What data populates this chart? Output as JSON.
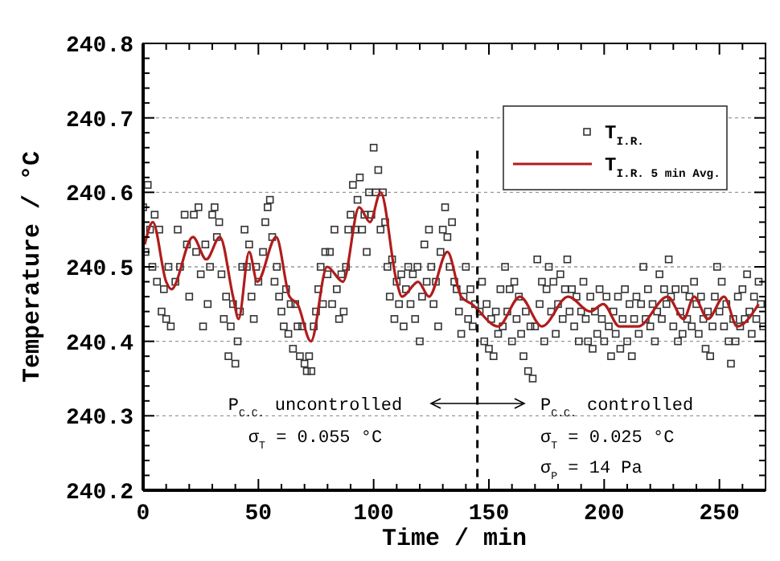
{
  "chart_data": {
    "type": "scatter",
    "xlabel": "Time / min",
    "ylabel": "Temperature / °C",
    "xlim": [
      0,
      270
    ],
    "ylim": [
      240.2,
      240.8
    ],
    "xticks": [
      0,
      {
        "value": 10,
        "label": null
      },
      {
        "value": 20,
        "label": null
      },
      {
        "value": 30,
        "label": null
      },
      {
        "value": 40,
        "label": null
      },
      50,
      {
        "value": 60,
        "label": null
      },
      {
        "value": 70,
        "label": null
      },
      {
        "value": 80,
        "label": null
      },
      {
        "value": 90,
        "label": null
      },
      100,
      {
        "value": 110,
        "label": null
      },
      {
        "value": 120,
        "label": null
      },
      {
        "value": 130,
        "label": null
      },
      {
        "value": 140,
        "label": null
      },
      150,
      {
        "value": 160,
        "label": null
      },
      {
        "value": 170,
        "label": null
      },
      {
        "value": 180,
        "label": null
      },
      {
        "value": 190,
        "label": null
      },
      200,
      {
        "value": 210,
        "label": null
      },
      {
        "value": 220,
        "label": null
      },
      {
        "value": 230,
        "label": null
      },
      {
        "value": 240,
        "label": null
      },
      250,
      {
        "value": 260,
        "label": null
      }
    ],
    "yticks": [
      240.2,
      {
        "value": 240.22,
        "label": null
      },
      {
        "value": 240.24,
        "label": null
      },
      {
        "value": 240.26,
        "label": null
      },
      {
        "value": 240.28,
        "label": null
      },
      240.3,
      {
        "value": 240.32,
        "label": null
      },
      {
        "value": 240.34,
        "label": null
      },
      {
        "value": 240.36,
        "label": null
      },
      {
        "value": 240.38,
        "label": null
      },
      240.4,
      {
        "value": 240.42,
        "label": null
      },
      {
        "value": 240.44,
        "label": null
      },
      {
        "value": 240.46,
        "label": null
      },
      {
        "value": 240.48,
        "label": null
      },
      240.5,
      {
        "value": 240.52,
        "label": null
      },
      {
        "value": 240.54,
        "label": null
      },
      {
        "value": 240.56,
        "label": null
      },
      {
        "value": 240.58,
        "label": null
      },
      240.6,
      {
        "value": 240.62,
        "label": null
      },
      {
        "value": 240.64,
        "label": null
      },
      {
        "value": 240.66,
        "label": null
      },
      {
        "value": 240.68,
        "label": null
      },
      240.7,
      {
        "value": 240.72,
        "label": null
      },
      {
        "value": 240.74,
        "label": null
      },
      {
        "value": 240.76,
        "label": null
      },
      {
        "value": 240.78,
        "label": null
      },
      240.8
    ],
    "grid": "y",
    "legend": "top right",
    "series": [
      {
        "name": "T$_{I.R.}$",
        "marker": "square",
        "color": "#333333",
        "x": [
          0,
          1,
          2,
          3,
          4,
          5,
          6,
          7,
          8,
          9,
          10,
          11,
          12,
          14,
          15,
          16,
          18,
          19,
          20,
          22,
          23,
          24,
          25,
          26,
          27,
          28,
          29,
          30,
          31,
          32,
          33,
          34,
          35,
          36,
          37,
          38,
          39,
          40,
          41,
          42,
          43,
          44,
          45,
          46,
          47,
          48,
          49,
          50,
          52,
          53,
          54,
          55,
          56,
          57,
          58,
          59,
          60,
          61,
          62,
          63,
          64,
          65,
          66,
          67,
          68,
          69,
          70,
          71,
          72,
          73,
          74,
          75,
          76,
          77,
          78,
          79,
          80,
          81,
          82,
          83,
          84,
          85,
          86,
          87,
          88,
          89,
          90,
          91,
          92,
          93,
          94,
          95,
          96,
          97,
          98,
          99,
          100,
          101,
          102,
          103,
          104,
          105,
          106,
          107,
          108,
          109,
          110,
          111,
          112,
          113,
          114,
          115,
          116,
          117,
          118,
          119,
          120,
          121,
          122,
          123,
          124,
          125,
          126,
          127,
          128,
          129,
          130,
          131,
          132,
          133,
          134,
          135,
          136,
          137,
          138,
          139,
          140,
          141,
          142,
          143,
          144,
          146,
          147,
          148,
          149,
          150,
          151,
          152,
          153,
          154,
          155,
          156,
          157,
          158,
          159,
          160,
          161,
          162,
          163,
          164,
          165,
          166,
          167,
          168,
          169,
          170,
          171,
          172,
          173,
          174,
          175,
          176,
          177,
          178,
          179,
          180,
          181,
          182,
          183,
          184,
          185,
          186,
          187,
          188,
          189,
          190,
          191,
          192,
          193,
          194,
          195,
          196,
          197,
          198,
          199,
          200,
          201,
          202,
          203,
          204,
          205,
          206,
          207,
          208,
          209,
          210,
          211,
          212,
          213,
          214,
          215,
          216,
          217,
          218,
          219,
          220,
          221,
          222,
          223,
          224,
          225,
          226,
          227,
          228,
          229,
          230,
          231,
          232,
          233,
          234,
          235,
          236,
          237,
          238,
          239,
          240,
          241,
          242,
          243,
          244,
          245,
          246,
          247,
          248,
          249,
          250,
          251,
          252,
          253,
          254,
          255,
          256,
          257,
          258,
          259,
          260,
          261,
          262,
          263,
          264,
          265,
          266,
          267,
          268,
          269
        ],
        "values": [
          240.58,
          240.52,
          240.61,
          240.55,
          240.5,
          240.57,
          240.48,
          240.55,
          240.44,
          240.47,
          240.43,
          240.5,
          240.42,
          240.48,
          240.55,
          240.5,
          240.57,
          240.53,
          240.46,
          240.57,
          240.52,
          240.58,
          240.49,
          240.42,
          240.53,
          240.45,
          240.5,
          240.57,
          240.58,
          240.54,
          240.56,
          240.49,
          240.43,
          240.46,
          240.38,
          240.42,
          240.45,
          240.37,
          240.4,
          240.44,
          240.5,
          240.55,
          240.5,
          240.53,
          240.46,
          240.43,
          240.5,
          240.48,
          240.52,
          240.56,
          240.58,
          240.59,
          240.54,
          240.48,
          240.5,
          240.46,
          240.44,
          240.42,
          240.47,
          240.41,
          240.45,
          240.39,
          240.45,
          240.42,
          240.38,
          240.42,
          240.37,
          240.36,
          240.38,
          240.36,
          240.42,
          240.44,
          240.47,
          240.5,
          240.45,
          240.52,
          240.49,
          240.52,
          240.45,
          240.55,
          240.47,
          240.43,
          240.49,
          240.44,
          240.5,
          240.55,
          240.57,
          240.61,
          240.55,
          240.59,
          240.62,
          240.55,
          240.57,
          240.52,
          240.6,
          240.57,
          240.66,
          240.6,
          240.63,
          240.55,
          240.6,
          240.56,
          240.5,
          240.46,
          240.51,
          240.43,
          240.48,
          240.45,
          240.49,
          240.42,
          240.47,
          240.5,
          240.45,
          240.49,
          240.43,
          240.5,
          240.4,
          240.46,
          240.53,
          240.48,
          240.55,
          240.5,
          240.45,
          240.48,
          240.42,
          240.52,
          240.55,
          240.58,
          240.54,
          240.5,
          240.56,
          240.48,
          240.47,
          240.44,
          240.41,
          240.46,
          240.5,
          240.43,
          240.47,
          240.42,
          240.45,
          240.44,
          240.48,
          240.4,
          240.45,
          240.39,
          240.43,
          240.38,
          240.44,
          240.41,
          240.47,
          240.42,
          240.5,
          240.44,
          240.47,
          240.4,
          240.48,
          240.43,
          240.46,
          240.41,
          240.38,
          240.44,
          240.36,
          240.42,
          240.35,
          240.42,
          240.51,
          240.45,
          240.48,
          240.4,
          240.47,
          240.5,
          240.44,
          240.48,
          240.41,
          240.45,
          240.49,
          240.43,
          240.47,
          240.51,
          240.44,
          240.47,
          240.42,
          240.46,
          240.4,
          240.44,
          240.48,
          240.43,
          240.4,
          240.46,
          240.39,
          240.44,
          240.41,
          240.47,
          240.43,
          240.4,
          240.46,
          240.42,
          240.38,
          240.44,
          240.41,
          240.46,
          240.39,
          240.43,
          240.47,
          240.4,
          240.45,
          240.38,
          240.43,
          240.46,
          240.41,
          240.45,
          240.5,
          240.43,
          240.47,
          240.42,
          240.45,
          240.4,
          240.44,
          240.49,
          240.43,
          240.47,
          240.45,
          240.51,
          240.46,
          240.42,
          240.47,
          240.4,
          240.44,
          240.41,
          240.47,
          240.43,
          240.46,
          240.42,
          240.48,
          240.45,
          240.41,
          240.46,
          240.43,
          240.39,
          240.44,
          240.38,
          240.42,
          240.46,
          240.5,
          240.44,
          240.48,
          240.42,
          240.45,
          240.4,
          240.37,
          240.43,
          240.4,
          240.46,
          240.42,
          240.47,
          240.43,
          240.49,
          240.44,
          240.41,
          240.46,
          240.43,
          240.48,
          240.45,
          240.42
        ]
      },
      {
        "name": "T$_{I.R. 5 min Avg.}$",
        "type": "line",
        "marker": "none",
        "line_style": "solid",
        "color": "#b01c1c",
        "x": [
          0.7,
          4.2,
          10,
          12.3,
          21.6,
          27.4,
          33.3,
          39,
          41.4,
          46,
          49.5,
          57.7,
          63.5,
          67,
          72.8,
          79.8,
          86.7,
          93.7,
          98.4,
          103,
          110,
          112.3,
          119.3,
          124,
          132,
          138,
          142.6,
          154,
          163.5,
          173,
          184.4,
          194,
          199.6,
          206.6,
          214.7,
          227.5,
          234.5,
          239,
          245,
          252,
          257.7,
          267
        ],
        "values": [
          240.53,
          240.56,
          240.48,
          240.47,
          240.54,
          240.51,
          240.54,
          240.46,
          240.43,
          240.52,
          240.48,
          240.54,
          240.46,
          240.45,
          240.4,
          240.5,
          240.48,
          240.58,
          240.56,
          240.6,
          240.48,
          240.46,
          240.48,
          240.46,
          240.52,
          240.46,
          240.45,
          240.42,
          240.46,
          240.42,
          240.46,
          240.44,
          240.45,
          240.42,
          240.42,
          240.46,
          240.43,
          240.46,
          240.43,
          240.46,
          240.42,
          240.45
        ]
      }
    ],
    "ref_lines": [
      {
        "axis": "x",
        "value": 145,
        "line_style": "dashed",
        "color": "#000000"
      }
    ],
    "annotations": [
      "P$_{C.C.}$ uncontrolled",
      "σ$_{T}$ = 0.055 °C",
      "P$_{C.C.}$ controlled",
      "σ$_{T}$ = 0.025 °C",
      "σ$_{P}$ = 14 Pa"
    ]
  }
}
